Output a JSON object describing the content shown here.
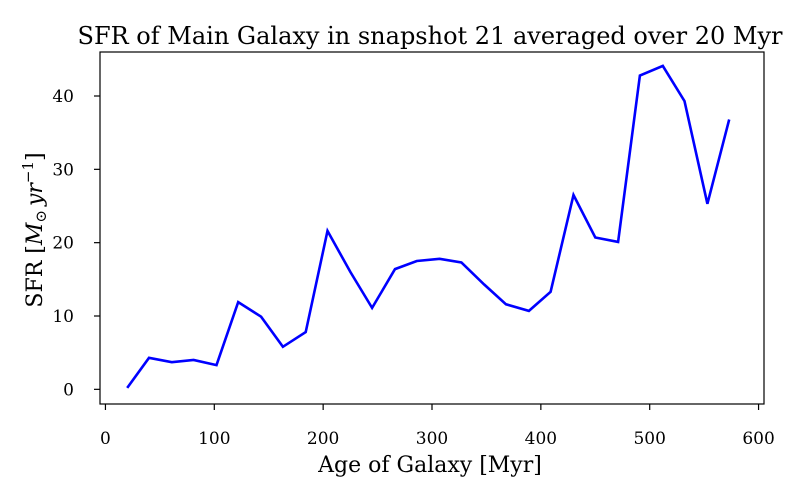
{
  "chart_data": {
    "type": "line",
    "title": "SFR of Main Galaxy in snapshot 21 averaged over 20 Myr",
    "xlabel": "Age of Galaxy [Myr]",
    "ylabel_main": "SFR [",
    "ylabel_symbol": "M",
    "ylabel_sub": "⊙",
    "ylabel_unit": "yr",
    "ylabel_exp": "−1",
    "ylabel_close": "]",
    "xlim": [
      -5,
      605
    ],
    "ylim": [
      -2,
      46
    ],
    "xticks": [
      0,
      100,
      200,
      300,
      400,
      500,
      600
    ],
    "yticks": [
      0,
      10,
      20,
      30,
      40
    ],
    "grid": false,
    "color": "#0000ff",
    "series": [
      {
        "x": [
          20,
          40,
          61,
          81,
          102,
          122,
          143,
          163,
          184,
          204,
          225,
          245,
          266,
          286,
          307,
          327,
          348,
          368,
          389,
          409,
          430,
          450,
          471,
          491,
          512,
          532,
          553,
          573
        ],
        "y": [
          0.2,
          4.3,
          3.7,
          4.0,
          3.3,
          11.9,
          9.9,
          5.8,
          7.8,
          21.6,
          16.0,
          11.1,
          16.4,
          17.5,
          17.8,
          17.3,
          14.3,
          11.6,
          10.7,
          13.3,
          26.5,
          20.7,
          20.1,
          42.8,
          44.1,
          39.3,
          25.3,
          36.8
        ]
      }
    ]
  }
}
